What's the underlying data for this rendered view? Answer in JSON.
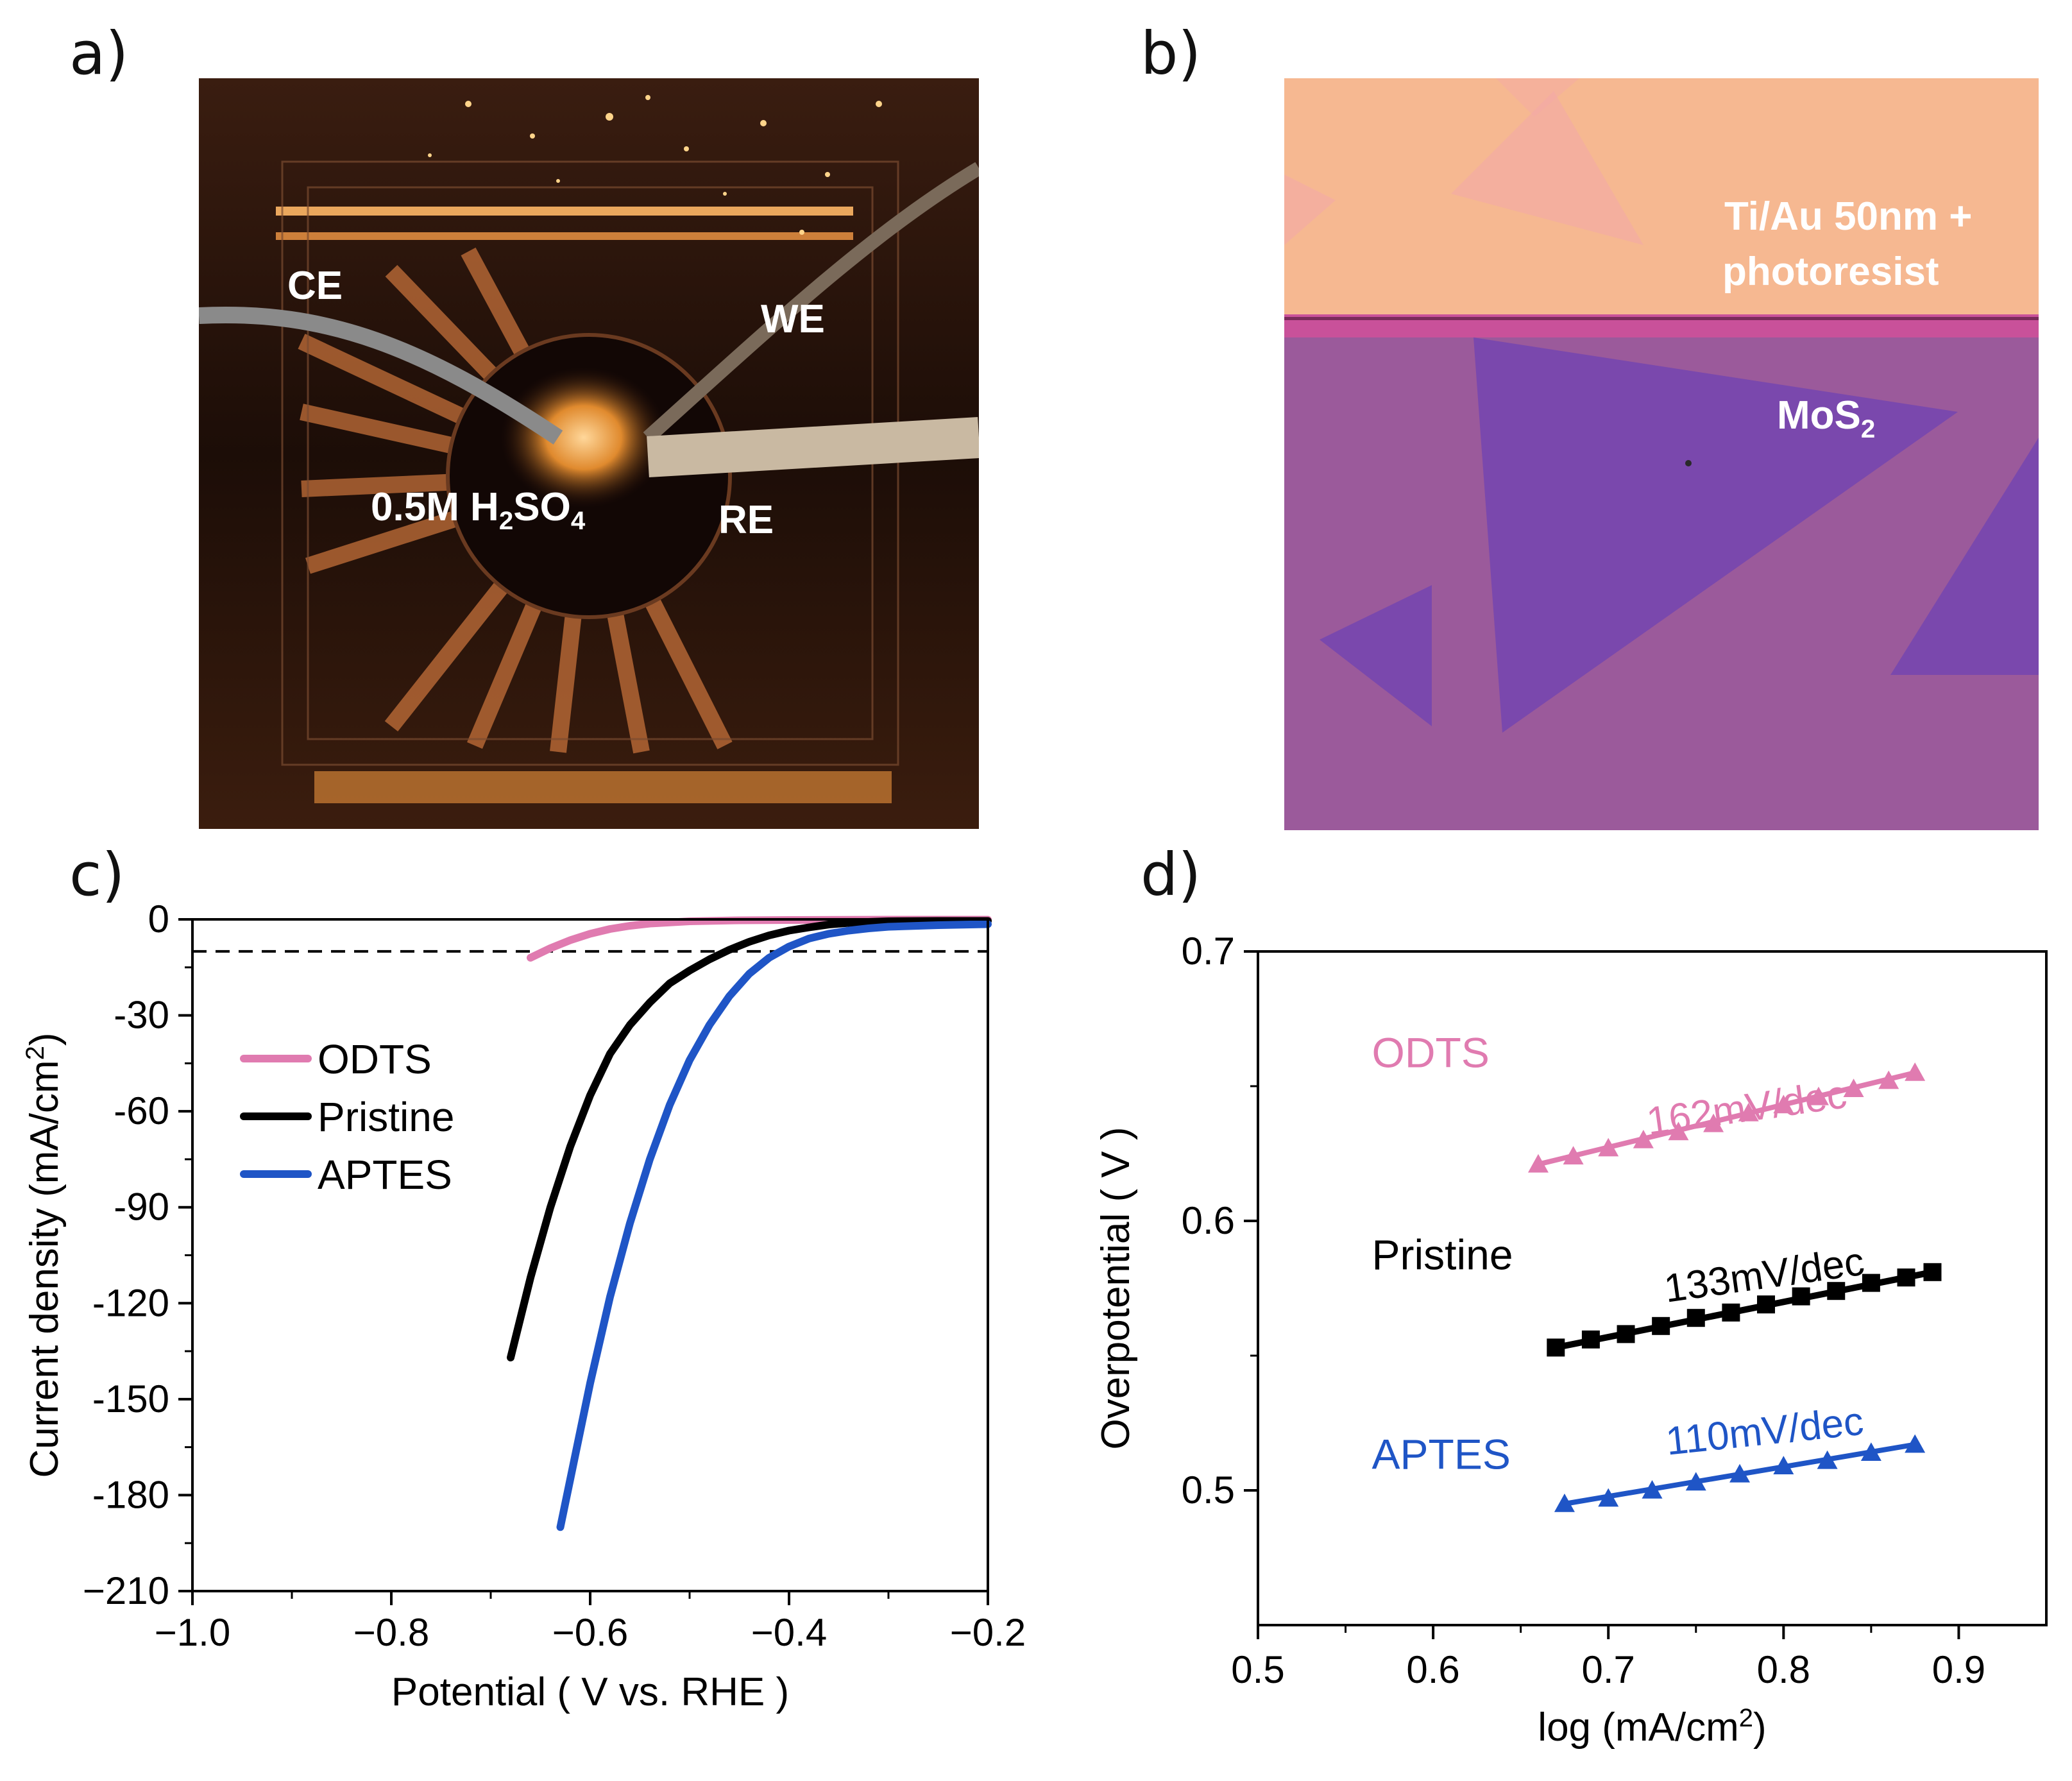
{
  "panels": {
    "a": "a)",
    "b": "b)",
    "c": "c)",
    "d": "d)"
  },
  "photo_a": {
    "labels": {
      "ce": "CE",
      "we": "WE",
      "re": "RE",
      "electrolyte_main": "0.5M H",
      "electrolyte_sub1": "2",
      "electrolyte_mid": "SO",
      "electrolyte_sub2": "4"
    }
  },
  "photo_b": {
    "labels": {
      "contact_line1": "Ti/Au 50nm +",
      "contact_line2": "photoresist",
      "material_main": "MoS",
      "material_sub": "2"
    }
  },
  "colors": {
    "odts": "#e07bb0",
    "pristine": "#000000",
    "aptes": "#1f55c6"
  },
  "chart_data": [
    {
      "type": "line",
      "panel": "c",
      "xlabel": "Potential ( V vs. RHE )",
      "ylabel_main": "Current density (mA/cm",
      "ylabel_sup": "2",
      "ylabel_end": ")",
      "xlim": [
        -1.0,
        -0.2
      ],
      "ylim": [
        -210,
        0
      ],
      "xticks": [
        -1.0,
        -0.8,
        -0.6,
        -0.4,
        -0.2
      ],
      "xtick_labels": [
        "−1.0",
        "−0.8",
        "−0.6",
        "−0.4",
        "−0.2"
      ],
      "yticks": [
        0,
        -30,
        -60,
        -90,
        -120,
        -150,
        -180,
        -210
      ],
      "ytick_labels": [
        "0",
        "-30",
        "-60",
        "-90",
        "-120",
        "-150",
        "-180",
        "−210"
      ],
      "reference_line_y": -10,
      "legend_position": "top-left",
      "series": [
        {
          "name": "ODTS",
          "key": "odts",
          "x": [
            -0.66,
            -0.64,
            -0.62,
            -0.6,
            -0.58,
            -0.56,
            -0.54,
            -0.5,
            -0.45,
            -0.4,
            -0.3,
            -0.2
          ],
          "y": [
            -12,
            -9,
            -6.5,
            -4.5,
            -3,
            -2,
            -1.3,
            -0.6,
            -0.3,
            -0.2,
            -0.1,
            -0.1
          ]
        },
        {
          "name": "Pristine",
          "key": "pristine",
          "x": [
            -0.68,
            -0.66,
            -0.64,
            -0.62,
            -0.6,
            -0.58,
            -0.56,
            -0.54,
            -0.52,
            -0.5,
            -0.48,
            -0.46,
            -0.44,
            -0.42,
            -0.4,
            -0.38,
            -0.36,
            -0.34,
            -0.32,
            -0.3,
            -0.25,
            -0.2
          ],
          "y": [
            -137,
            -112,
            -90,
            -71,
            -55,
            -42,
            -33,
            -26,
            -20,
            -16,
            -12.5,
            -9.5,
            -7,
            -5,
            -3.5,
            -2.5,
            -1.6,
            -1.1,
            -0.8,
            -0.6,
            -0.5,
            -0.5
          ]
        },
        {
          "name": "APTES",
          "key": "aptes",
          "x": [
            -0.63,
            -0.62,
            -0.6,
            -0.58,
            -0.56,
            -0.54,
            -0.52,
            -0.5,
            -0.48,
            -0.46,
            -0.44,
            -0.42,
            -0.4,
            -0.38,
            -0.36,
            -0.34,
            -0.32,
            -0.3,
            -0.25,
            -0.2
          ],
          "y": [
            -190,
            -175,
            -145,
            -118,
            -95,
            -75,
            -58,
            -44,
            -33,
            -24,
            -17,
            -12,
            -8.5,
            -6,
            -4.5,
            -3.5,
            -2.8,
            -2.3,
            -1.8,
            -1.5
          ]
        }
      ]
    },
    {
      "type": "scatter",
      "panel": "d",
      "xlabel_main": "log (mA/cm",
      "xlabel_sup": "2",
      "xlabel_end": ")",
      "ylabel": "Overpotential ( V )",
      "xlim": [
        0.5,
        0.95
      ],
      "ylim": [
        0.45,
        0.7
      ],
      "xticks": [
        0.5,
        0.6,
        0.7,
        0.8,
        0.9
      ],
      "xtick_labels": [
        "0.5",
        "0.6",
        "0.7",
        "0.8",
        "0.9"
      ],
      "yticks": [
        0.5,
        0.6,
        0.7
      ],
      "ytick_labels": [
        "0.5",
        "0.6",
        "0.7"
      ],
      "series": [
        {
          "name": "ODTS",
          "key": "odts",
          "slope_label": "162mV/dec",
          "marker": "triangle",
          "x": [
            0.66,
            0.68,
            0.7,
            0.72,
            0.74,
            0.76,
            0.78,
            0.8,
            0.82,
            0.84,
            0.86,
            0.875
          ],
          "y": [
            0.621,
            0.624,
            0.627,
            0.63,
            0.633,
            0.636,
            0.64,
            0.643,
            0.646,
            0.649,
            0.652,
            0.655
          ]
        },
        {
          "name": "Pristine",
          "key": "pristine",
          "slope_label": "133mV/dec",
          "marker": "square",
          "x": [
            0.67,
            0.69,
            0.71,
            0.73,
            0.75,
            0.77,
            0.79,
            0.81,
            0.83,
            0.85,
            0.87,
            0.885
          ],
          "y": [
            0.553,
            0.556,
            0.558,
            0.561,
            0.564,
            0.566,
            0.569,
            0.572,
            0.574,
            0.577,
            0.579,
            0.581
          ]
        },
        {
          "name": "APTES",
          "key": "aptes",
          "slope_label": "110mV/dec",
          "marker": "triangle",
          "x": [
            0.675,
            0.7,
            0.725,
            0.75,
            0.775,
            0.8,
            0.825,
            0.85,
            0.875
          ],
          "y": [
            0.495,
            0.497,
            0.5,
            0.503,
            0.506,
            0.509,
            0.511,
            0.514,
            0.517
          ]
        }
      ]
    }
  ]
}
